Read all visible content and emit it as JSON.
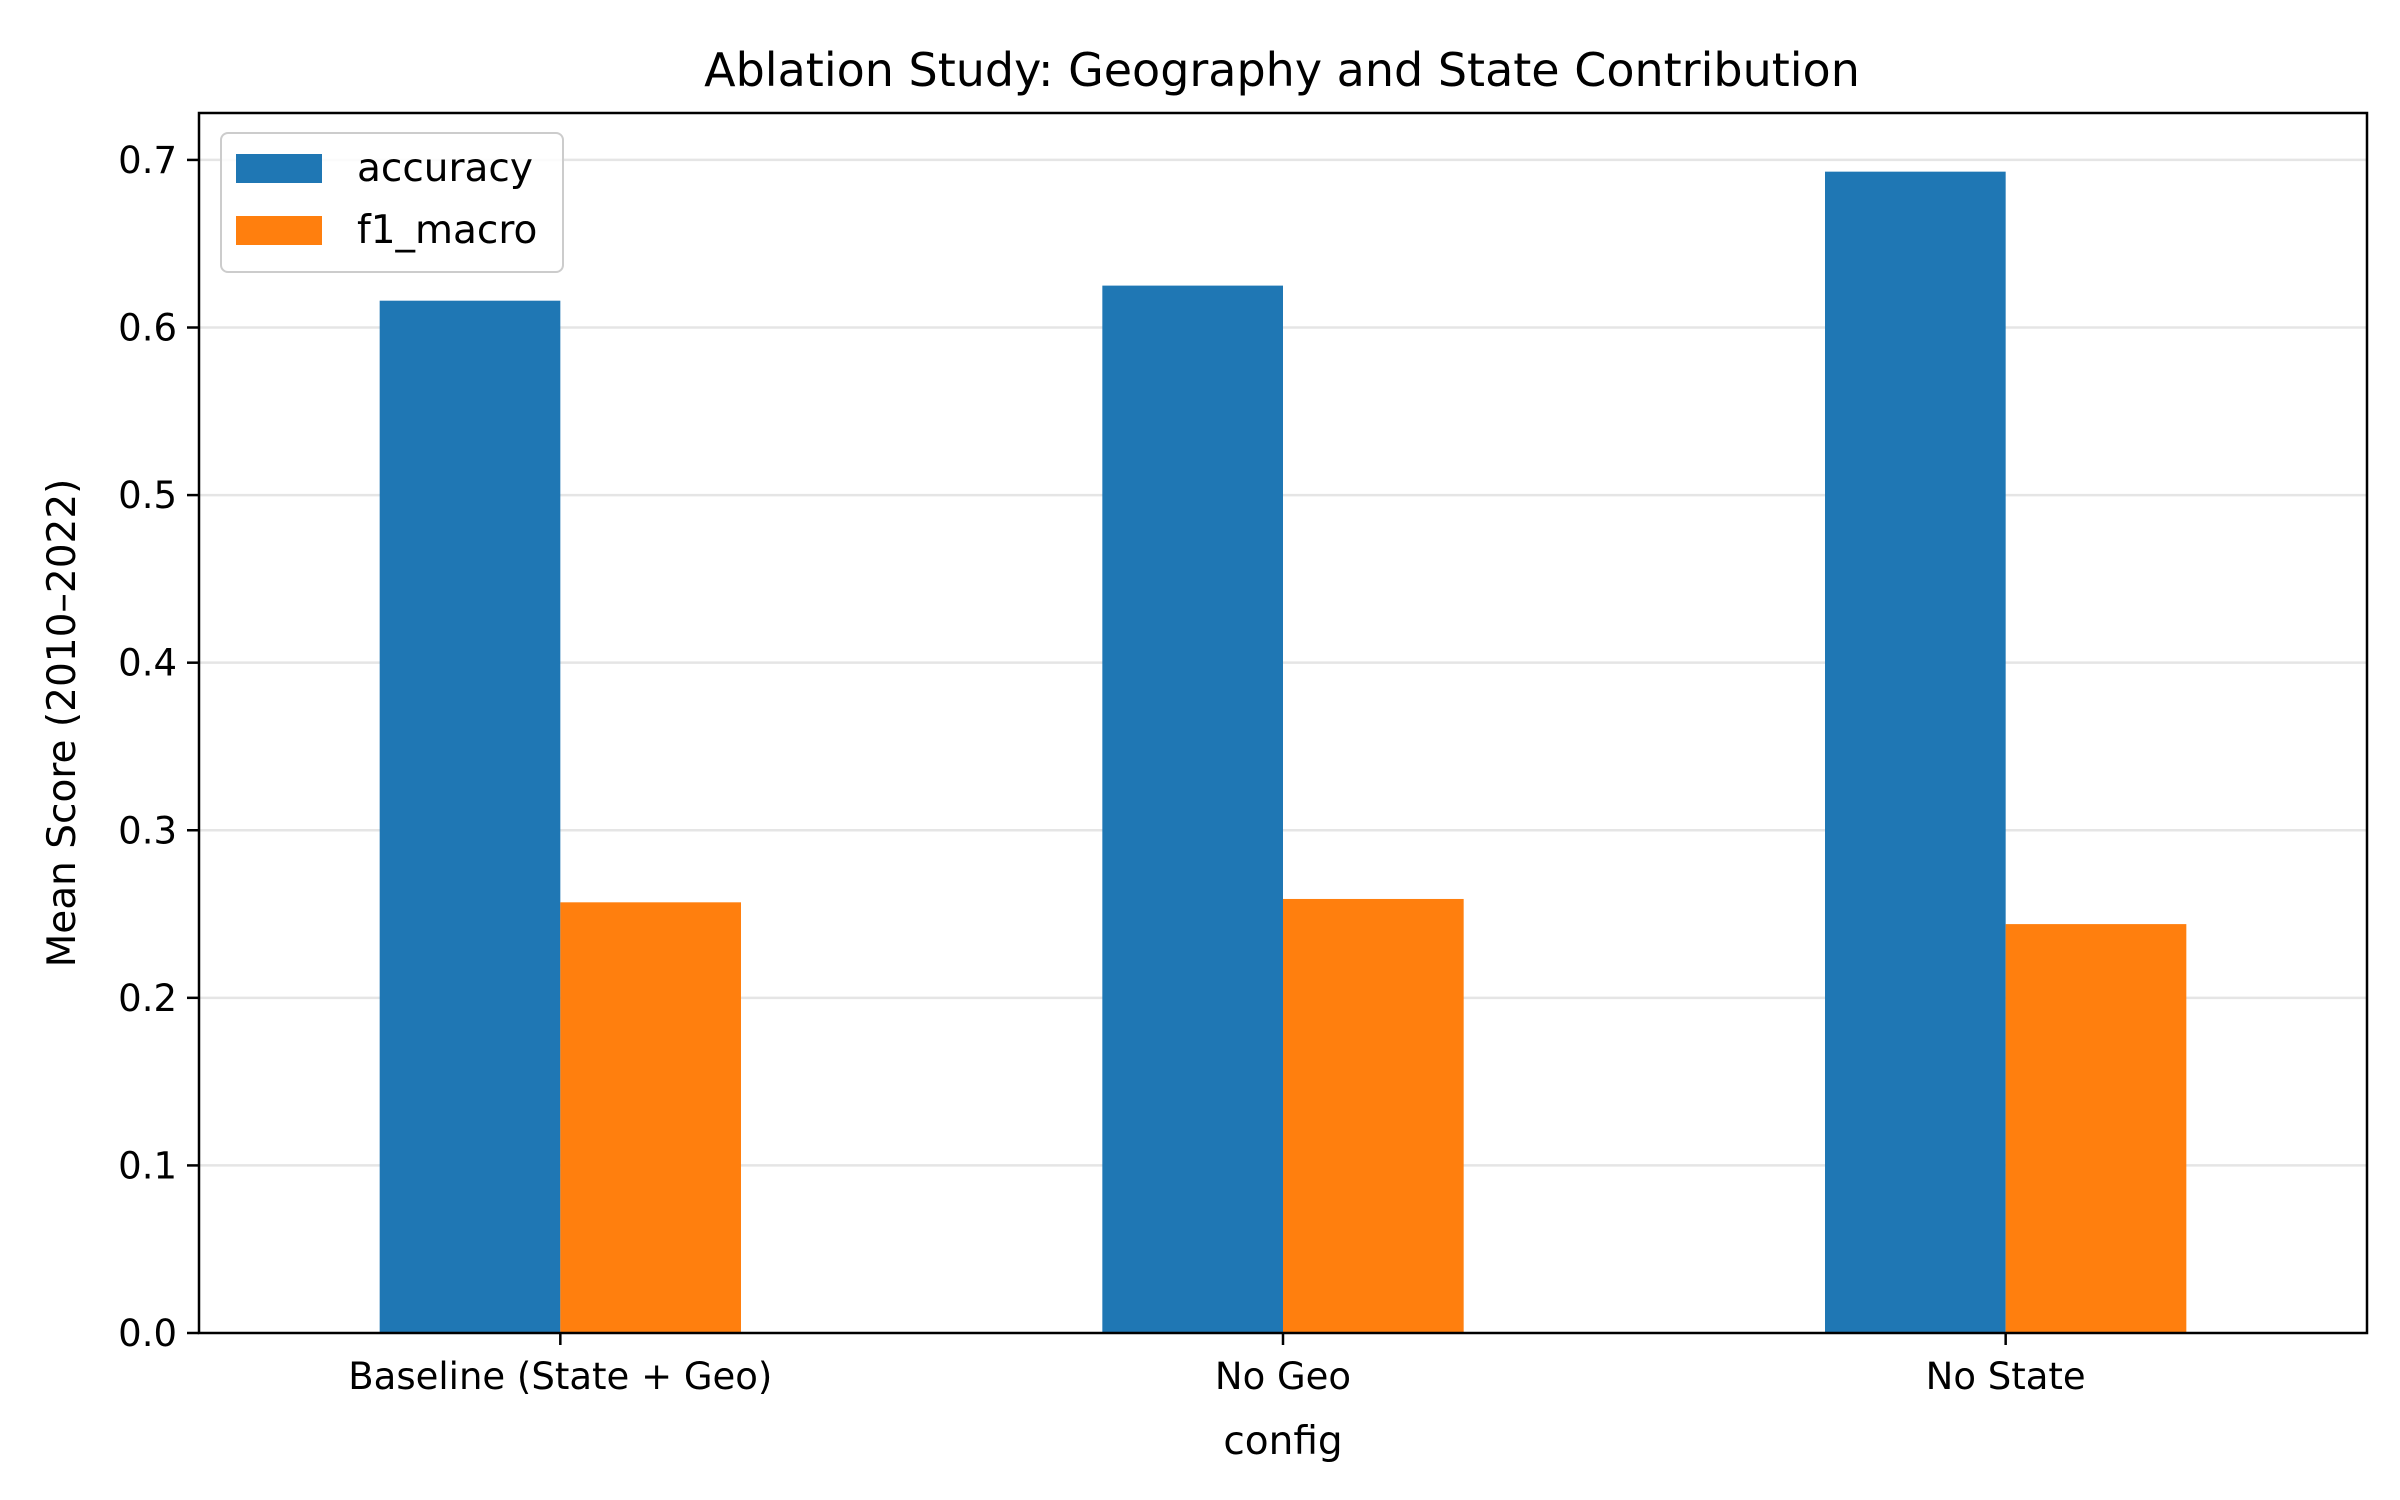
{
  "chart_data": {
    "type": "bar",
    "title": "Ablation Study: Geography and State Contribution",
    "xlabel": "config",
    "ylabel": "Mean Score (2010–2022)",
    "categories": [
      "Baseline (State + Geo)",
      "No Geo",
      "No State"
    ],
    "series": [
      {
        "name": "accuracy",
        "color": "#1f77b4",
        "values": [
          0.616,
          0.625,
          0.693
        ]
      },
      {
        "name": "f1_macro",
        "color": "#ff7f0e",
        "values": [
          0.257,
          0.259,
          0.244
        ]
      }
    ],
    "ylim": [
      0,
      0.728
    ],
    "yticks": [
      0.0,
      0.1,
      0.2,
      0.3,
      0.4,
      0.5,
      0.6,
      0.7
    ],
    "ytick_labels": [
      "0.0",
      "0.1",
      "0.2",
      "0.3",
      "0.4",
      "0.5",
      "0.6",
      "0.7"
    ],
    "grid": "y",
    "legend_position": "top-left"
  }
}
